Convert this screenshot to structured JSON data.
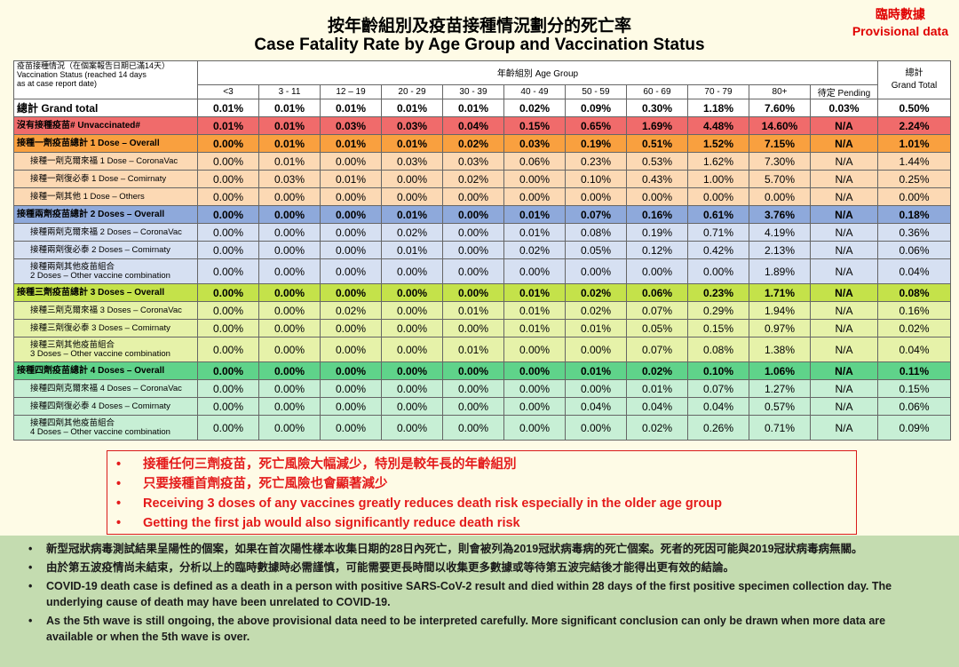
{
  "title_cn": "按年齡組別及疫苗接種情況劃分的死亡率",
  "title_en": "Case Fatality Rate by Age Group and Vaccination Status",
  "provisional_cn": "臨時數據",
  "provisional_en": "Provisional data",
  "header": {
    "status_cn": "疫苗接種情況（在個案報告日期已滿14天）",
    "status_en_1": "Vaccination Status (reached 14 days",
    "status_en_2": "as at case report date)",
    "age_group": "年齡組別 Age Group",
    "grand_total_cn": "總計",
    "grand_total_en": "Grand Total",
    "ages": [
      "<3",
      "3 - 11",
      "12 – 19",
      "20 - 29",
      "30 - 39",
      "40 - 49",
      "50 - 59",
      "60 - 69",
      "70 - 79",
      "80+",
      "待定 Pending"
    ]
  },
  "rows": [
    {
      "label": "總計 Grand total",
      "label2": "",
      "kind": "grand",
      "bg": "#ffffff",
      "values": [
        "0.01%",
        "0.01%",
        "0.01%",
        "0.01%",
        "0.01%",
        "0.02%",
        "0.09%",
        "0.30%",
        "1.18%",
        "7.60%",
        "0.03%",
        "0.50%"
      ]
    },
    {
      "label": "沒有接種疫苗# Unvaccinated#",
      "label2": "",
      "kind": "overall",
      "bg": "#f06b6b",
      "values": [
        "0.01%",
        "0.01%",
        "0.03%",
        "0.03%",
        "0.04%",
        "0.15%",
        "0.65%",
        "1.69%",
        "4.48%",
        "14.60%",
        "N/A",
        "2.24%"
      ]
    },
    {
      "label": "接種一劑疫苗總計 1 Dose – Overall",
      "label2": "",
      "kind": "overall",
      "bg": "#f9a03f",
      "values": [
        "0.00%",
        "0.01%",
        "0.01%",
        "0.01%",
        "0.02%",
        "0.03%",
        "0.19%",
        "0.51%",
        "1.52%",
        "7.15%",
        "N/A",
        "1.01%"
      ]
    },
    {
      "label": "接種一劑克爾來福 1 Dose – CoronaVac",
      "label2": "",
      "kind": "sub",
      "bg": "#fcd9b4",
      "values": [
        "0.00%",
        "0.01%",
        "0.00%",
        "0.03%",
        "0.03%",
        "0.06%",
        "0.23%",
        "0.53%",
        "1.62%",
        "7.30%",
        "N/A",
        "1.44%"
      ]
    },
    {
      "label": "接種一劑復必泰 1 Dose – Comirnaty",
      "label2": "",
      "kind": "sub",
      "bg": "#fcd9b4",
      "values": [
        "0.00%",
        "0.03%",
        "0.01%",
        "0.00%",
        "0.02%",
        "0.00%",
        "0.10%",
        "0.43%",
        "1.00%",
        "5.70%",
        "N/A",
        "0.25%"
      ]
    },
    {
      "label": "接種一劑其他 1 Dose – Others",
      "label2": "",
      "kind": "sub",
      "bg": "#fcd9b4",
      "values": [
        "0.00%",
        "0.00%",
        "0.00%",
        "0.00%",
        "0.00%",
        "0.00%",
        "0.00%",
        "0.00%",
        "0.00%",
        "0.00%",
        "N/A",
        "0.00%"
      ]
    },
    {
      "label": "接種兩劑疫苗總計 2 Doses – Overall",
      "label2": "",
      "kind": "overall",
      "bg": "#8ea9db",
      "values": [
        "0.00%",
        "0.00%",
        "0.00%",
        "0.01%",
        "0.00%",
        "0.01%",
        "0.07%",
        "0.16%",
        "0.61%",
        "3.76%",
        "N/A",
        "0.18%"
      ]
    },
    {
      "label": "接種兩劑克爾來福 2 Doses – CoronaVac",
      "label2": "",
      "kind": "sub",
      "bg": "#d6e0f2",
      "values": [
        "0.00%",
        "0.00%",
        "0.00%",
        "0.02%",
        "0.00%",
        "0.01%",
        "0.08%",
        "0.19%",
        "0.71%",
        "4.19%",
        "N/A",
        "0.36%"
      ]
    },
    {
      "label": "接種兩劑復必泰 2 Doses – Comirnaty",
      "label2": "",
      "kind": "sub",
      "bg": "#d6e0f2",
      "values": [
        "0.00%",
        "0.00%",
        "0.00%",
        "0.01%",
        "0.00%",
        "0.02%",
        "0.05%",
        "0.12%",
        "0.42%",
        "2.13%",
        "N/A",
        "0.06%"
      ]
    },
    {
      "label": "接種兩劑其他疫苗組合",
      "label2": "2 Doses – Other vaccine combination",
      "kind": "sub2",
      "bg": "#d6e0f2",
      "values": [
        "0.00%",
        "0.00%",
        "0.00%",
        "0.00%",
        "0.00%",
        "0.00%",
        "0.00%",
        "0.00%",
        "0.00%",
        "1.89%",
        "N/A",
        "0.04%"
      ]
    },
    {
      "label": "接種三劑疫苗總計 3 Doses – Overall",
      "label2": "",
      "kind": "overall",
      "bg": "#c4e24a",
      "values": [
        "0.00%",
        "0.00%",
        "0.00%",
        "0.00%",
        "0.00%",
        "0.01%",
        "0.02%",
        "0.06%",
        "0.23%",
        "1.71%",
        "N/A",
        "0.08%"
      ]
    },
    {
      "label": "接種三劑克爾來福 3 Doses – CoronaVac",
      "label2": "",
      "kind": "sub",
      "bg": "#e6f2a9",
      "values": [
        "0.00%",
        "0.00%",
        "0.02%",
        "0.00%",
        "0.01%",
        "0.01%",
        "0.02%",
        "0.07%",
        "0.29%",
        "1.94%",
        "N/A",
        "0.16%"
      ]
    },
    {
      "label": "接種三劑復必泰 3 Doses – Comirnaty",
      "label2": "",
      "kind": "sub",
      "bg": "#e6f2a9",
      "values": [
        "0.00%",
        "0.00%",
        "0.00%",
        "0.00%",
        "0.00%",
        "0.01%",
        "0.01%",
        "0.05%",
        "0.15%",
        "0.97%",
        "N/A",
        "0.02%"
      ]
    },
    {
      "label": "接種三劑其他疫苗組合",
      "label2": "3 Doses – Other vaccine combination",
      "kind": "sub2",
      "bg": "#e6f2a9",
      "values": [
        "0.00%",
        "0.00%",
        "0.00%",
        "0.00%",
        "0.01%",
        "0.00%",
        "0.00%",
        "0.07%",
        "0.08%",
        "1.38%",
        "N/A",
        "0.04%"
      ]
    },
    {
      "label": "接種四劑疫苗總計 4 Doses – Overall",
      "label2": "",
      "kind": "overall",
      "bg": "#5fd38a",
      "values": [
        "0.00%",
        "0.00%",
        "0.00%",
        "0.00%",
        "0.00%",
        "0.00%",
        "0.01%",
        "0.02%",
        "0.10%",
        "1.06%",
        "N/A",
        "0.11%"
      ]
    },
    {
      "label": "接種四劑克爾來福 4 Doses – CoronaVac",
      "label2": "",
      "kind": "sub",
      "bg": "#c7efd5",
      "values": [
        "0.00%",
        "0.00%",
        "0.00%",
        "0.00%",
        "0.00%",
        "0.00%",
        "0.00%",
        "0.01%",
        "0.07%",
        "1.27%",
        "N/A",
        "0.15%"
      ]
    },
    {
      "label": "接種四劑復必泰 4 Doses – Comirnaty",
      "label2": "",
      "kind": "sub",
      "bg": "#c7efd5",
      "values": [
        "0.00%",
        "0.00%",
        "0.00%",
        "0.00%",
        "0.00%",
        "0.00%",
        "0.04%",
        "0.04%",
        "0.04%",
        "0.57%",
        "N/A",
        "0.06%"
      ]
    },
    {
      "label": "接種四劑其他疫苗組合",
      "label2": "4 Doses – Other vaccine combination",
      "kind": "sub2",
      "bg": "#c7efd5",
      "values": [
        "0.00%",
        "0.00%",
        "0.00%",
        "0.00%",
        "0.00%",
        "0.00%",
        "0.00%",
        "0.02%",
        "0.26%",
        "0.71%",
        "N/A",
        "0.09%"
      ]
    }
  ],
  "highlights": [
    "接種任何三劑疫苗，死亡風險大幅減少，特別是較年長的年齡組別",
    "只要接種首劑疫苗，死亡風險也會顯著減少",
    "Receiving 3 doses of any vaccines greatly reduces death risk especially in the older age group",
    "Getting the first jab would also significantly reduce death risk"
  ],
  "notes": [
    "新型冠狀病毒測試結果呈陽性的個案，如果在首次陽性樣本收集日期的28日內死亡，則會被列為2019冠狀病毒病的死亡個案。死者的死因可能與2019冠狀病毒病無關。",
    "由於第五波疫情尚未結束，分析以上的臨時數據時必需謹慎，可能需要更長時間以收集更多數據或等待第五波完結後才能得出更有效的結論。",
    "COVID-19 death case is defined as a death in a person with positive SARS-CoV-2 result and died within 28 days of the first positive specimen collection day. The underlying cause of death may have been unrelated to COVID-19.",
    "As the 5th wave is still ongoing, the above provisional data need to be interpreted carefully. More significant conclusion can only be drawn when more data are available or when the 5th wave is over."
  ],
  "bullet_glyph": "•"
}
